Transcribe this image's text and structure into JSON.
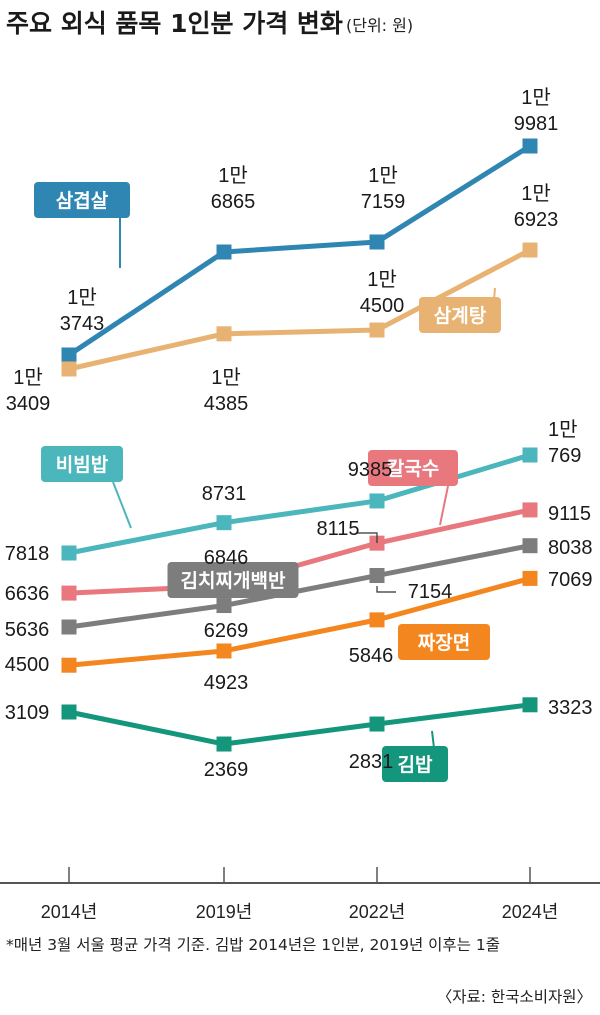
{
  "chart_data": {
    "type": "line",
    "title": "주요 외식 품목 1인분 가격 변화",
    "unit": "(단위: 원)",
    "categories": [
      "2014년",
      "2019년",
      "2022년",
      "2024년"
    ],
    "series": [
      {
        "name": "삼겹살",
        "color": "#2f86b3",
        "values": [
          13743,
          16865,
          17159,
          19981
        ],
        "labels": [
          "1만\n3743",
          "1만\n6865",
          "1만\n7159",
          "1만\n9981"
        ]
      },
      {
        "name": "삼계탕",
        "color": "#e8b272",
        "values": [
          13409,
          14385,
          14500,
          16923
        ],
        "labels": [
          "1만\n3409",
          "1만\n4385",
          "1만\n4500",
          "1만\n6923"
        ]
      },
      {
        "name": "비빔밥",
        "color": "#4bb6bb",
        "values": [
          7818,
          8731,
          9385,
          10769
        ],
        "labels": [
          "7818",
          "8731",
          "9385",
          "1만\n769"
        ]
      },
      {
        "name": "칼국수",
        "color": "#e8777e",
        "values": [
          6636,
          6846,
          8115,
          9115
        ],
        "labels": [
          "6636",
          "6846",
          "8115",
          "9115"
        ]
      },
      {
        "name": "김치찌개백반",
        "color": "#7d7d7d",
        "values": [
          5636,
          6269,
          7154,
          8038
        ],
        "labels": [
          "5636",
          "6269",
          "7154",
          "8038"
        ]
      },
      {
        "name": "짜장면",
        "color": "#f3861f",
        "values": [
          4500,
          4923,
          5846,
          7069
        ],
        "labels": [
          "4500",
          "4923",
          "5846",
          "7069"
        ]
      },
      {
        "name": "김밥",
        "color": "#14967c",
        "values": [
          3109,
          2369,
          2831,
          3323
        ],
        "labels": [
          "3109",
          "2369",
          "2831",
          "3323"
        ]
      }
    ]
  },
  "footnote": "*매년 3월 서울 평균 가격 기준. 김밥 2014년은 1인분, 2019년 이후는 1줄",
  "source": "〈자료: 한국소비자원〉"
}
